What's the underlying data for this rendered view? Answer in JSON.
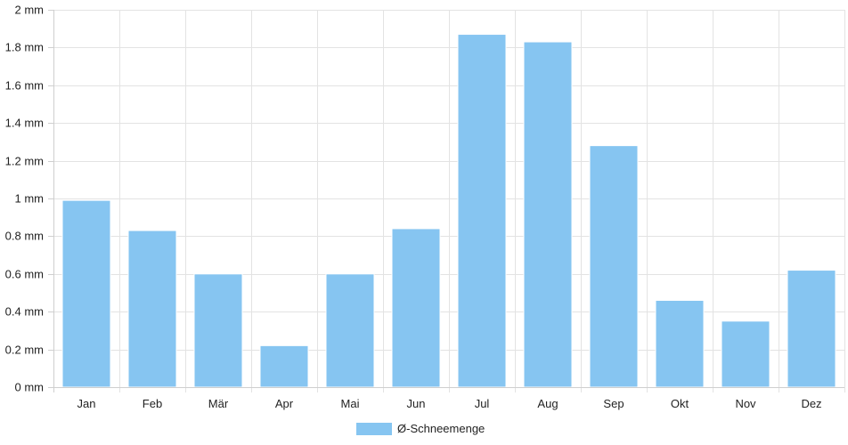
{
  "chart_data": {
    "type": "bar",
    "categories": [
      "Jan",
      "Feb",
      "Mär",
      "Apr",
      "Mai",
      "Jun",
      "Jul",
      "Aug",
      "Sep",
      "Okt",
      "Nov",
      "Dez"
    ],
    "series": [
      {
        "name": "Ø-Schneemenge",
        "color": "#86c5f1",
        "values": [
          0.99,
          0.83,
          0.6,
          0.22,
          0.6,
          0.84,
          1.87,
          1.83,
          1.28,
          0.46,
          0.35,
          0.62
        ]
      }
    ],
    "y_ticks": [
      "0 mm",
      "0.2 mm",
      "0.4 mm",
      "0.6 mm",
      "0.8 mm",
      "1 mm",
      "1.2 mm",
      "1.4 mm",
      "1.6 mm",
      "1.8 mm",
      "2 mm"
    ],
    "ylim": [
      0,
      2
    ],
    "y_unit": "mm",
    "grid": true,
    "legend_position": "bottom"
  }
}
